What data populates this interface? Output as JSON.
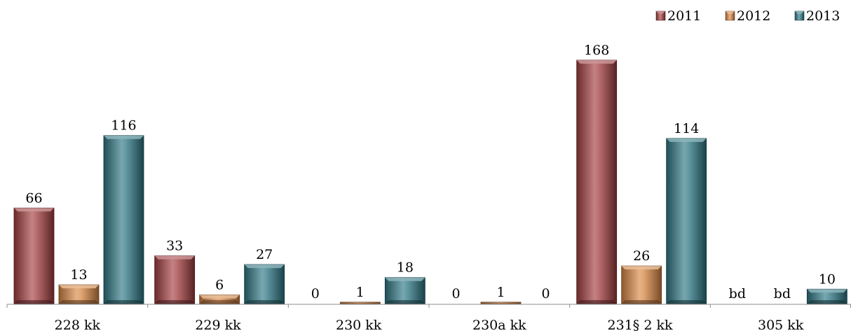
{
  "chart_data": {
    "type": "bar",
    "title": "",
    "xlabel": "",
    "ylabel": "",
    "categories": [
      "228 kk",
      "229 kk",
      "230 kk",
      "230a kk",
      "231§ 2 kk",
      "305 kk"
    ],
    "series": [
      {
        "name": "2011",
        "color": "#a43f40",
        "values": [
          66,
          33,
          0,
          0,
          168,
          null
        ],
        "labels": [
          "66",
          "33",
          "0",
          "0",
          "168",
          "bd"
        ]
      },
      {
        "name": "2012",
        "color": "#d98845",
        "values": [
          13,
          6,
          1,
          1,
          26,
          null
        ],
        "labels": [
          "13",
          "6",
          "1",
          "1",
          "26",
          "bd"
        ]
      },
      {
        "name": "2013",
        "color": "#2f7886",
        "values": [
          116,
          27,
          18,
          0,
          114,
          10
        ],
        "labels": [
          "116",
          "27",
          "18",
          "0",
          "114",
          "10"
        ]
      }
    ],
    "ylim": [
      0,
      175
    ],
    "grid": false,
    "legend": "top-right"
  }
}
